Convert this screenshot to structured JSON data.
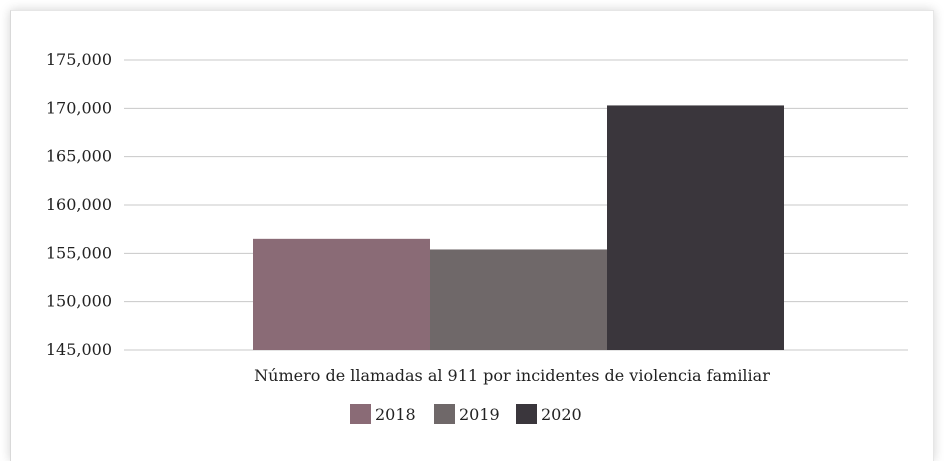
{
  "chart_data": {
    "type": "bar",
    "categories": [
      "Número de llamadas al 911 por incidentes de violencia familiar"
    ],
    "series": [
      {
        "name": "2018",
        "values": [
          156500
        ],
        "color": "#8a6b76"
      },
      {
        "name": "2019",
        "values": [
          155400
        ],
        "color": "#6f6869"
      },
      {
        "name": "2020",
        "values": [
          170300
        ],
        "color": "#3a363c"
      }
    ],
    "ylim": [
      145000,
      175000
    ],
    "yticks": [
      145000,
      150000,
      155000,
      160000,
      165000,
      170000,
      175000
    ],
    "ytick_labels": [
      "145,000",
      "150,000",
      "155,000",
      "160,000",
      "165,000",
      "170,000",
      "175,000"
    ],
    "grid": true,
    "legend_position": "bottom"
  }
}
